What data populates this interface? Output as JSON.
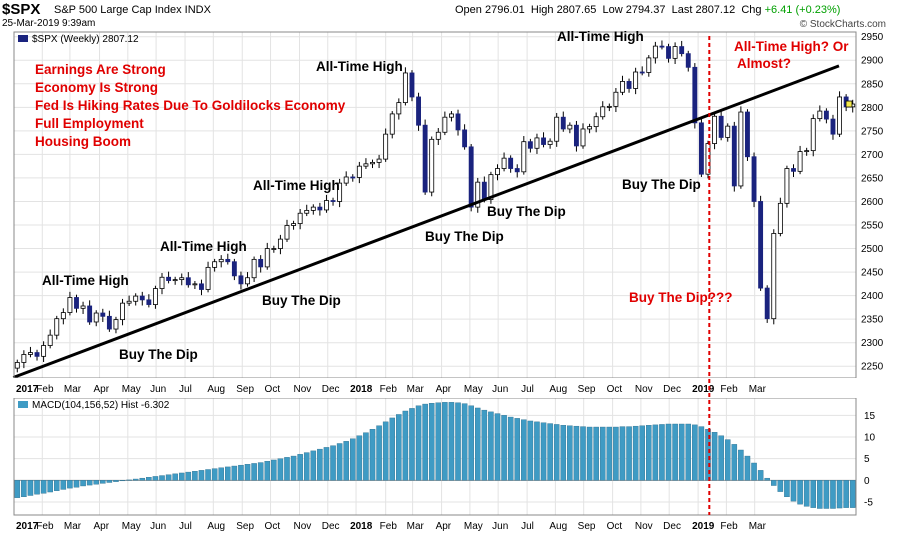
{
  "header": {
    "symbol": "$SPX",
    "description": "S&P 500 Large Cap Index INDX",
    "date": "25-Mar-2019 9:39am",
    "open_label": "Open",
    "open": "2796.01",
    "high_label": "High",
    "high": "2807.65",
    "low_label": "Low",
    "low": "2794.37",
    "last_label": "Last",
    "last": "2807.12",
    "chg_label": "Chg",
    "chg": "+6.41 (+0.23%)",
    "brand": "© StockCharts.com"
  },
  "colors": {
    "up": "#ffffff",
    "down": "#1a237e",
    "macd_bar": "#3f9bc4",
    "annotation_red": "#e00000",
    "trendline": "#000000"
  },
  "annotations": {
    "bullets": [
      "Earnings Are Strong",
      "Economy Is Strong",
      "Fed Is Hiking Rates Due To Goldilocks Economy",
      "Full Employment",
      "Housing Boom"
    ],
    "ath": "All-Time High",
    "btd": "Buy The Dip",
    "ath_q": "All-Time High? Or",
    "almost": "Almost?",
    "btd_q": "Buy The Dip???"
  },
  "chart_data": [
    {
      "type": "candlestick",
      "legend": "$SPX (Weekly) 2807.12",
      "x_tick_labels": [
        "2017",
        "Feb",
        "Mar",
        "Apr",
        "May",
        "Jun",
        "Jul",
        "Aug",
        "Sep",
        "Oct",
        "Nov",
        "Dec",
        "2018",
        "Feb",
        "Mar",
        "Apr",
        "May",
        "Jun",
        "Jul",
        "Aug",
        "Sep",
        "Oct",
        "Nov",
        "Dec",
        "2019",
        "Feb",
        "Mar"
      ],
      "y_tick_labels": [
        "2950",
        "2900",
        "2850",
        "2800",
        "2750",
        "2700",
        "2650",
        "2600",
        "2550",
        "2500",
        "2450",
        "2400",
        "2350",
        "2300",
        "2250"
      ],
      "ylim": [
        2225,
        2960
      ],
      "close": [
        2258,
        2275,
        2279,
        2271,
        2294,
        2316,
        2351,
        2364,
        2396,
        2373,
        2378,
        2344,
        2363,
        2356,
        2329,
        2349,
        2384,
        2388,
        2399,
        2391,
        2381,
        2415,
        2439,
        2432,
        2434,
        2438,
        2423,
        2425,
        2413,
        2460,
        2472,
        2477,
        2472,
        2442,
        2425,
        2438,
        2477,
        2461,
        2500,
        2500,
        2520,
        2549,
        2553,
        2575,
        2581,
        2588,
        2582,
        2602,
        2600,
        2639,
        2652,
        2651,
        2675,
        2680,
        2683,
        2690,
        2743,
        2786,
        2810,
        2873,
        2822,
        2762,
        2620,
        2732,
        2747,
        2779,
        2786,
        2752,
        2716,
        2588,
        2641,
        2604,
        2657,
        2670,
        2692,
        2670,
        2663,
        2727,
        2713,
        2735,
        2721,
        2728,
        2779,
        2754,
        2762,
        2718,
        2754,
        2759,
        2780,
        2801,
        2802,
        2832,
        2855,
        2840,
        2875,
        2874,
        2905,
        2930,
        2929,
        2904,
        2929,
        2914,
        2885,
        2767,
        2658,
        2723,
        2781,
        2736,
        2760,
        2633,
        2790,
        2695,
        2600,
        2416,
        2351,
        2532,
        2596,
        2670,
        2664,
        2706,
        2708,
        2776,
        2792,
        2775,
        2743,
        2822,
        2801,
        2807
      ],
      "macd_ylim": [
        -8,
        19
      ],
      "macd_y_tick_labels": [
        "15",
        "10",
        "5",
        "0",
        "-5"
      ],
      "macd_legend": "MACD(104,156,52) Hist -6.302",
      "macd_values": [
        -4.0,
        -3.8,
        -3.5,
        -3.2,
        -3.0,
        -2.7,
        -2.4,
        -2.1,
        -1.8,
        -1.6,
        -1.3,
        -1.1,
        -0.9,
        -0.7,
        -0.5,
        -0.3,
        -0.1,
        0.1,
        0.3,
        0.5,
        0.7,
        0.9,
        1.1,
        1.3,
        1.5,
        1.7,
        1.9,
        2.1,
        2.3,
        2.5,
        2.7,
        2.9,
        3.1,
        3.3,
        3.5,
        3.7,
        3.9,
        4.1,
        4.4,
        4.7,
        5.0,
        5.3,
        5.6,
        6.0,
        6.4,
        6.8,
        7.2,
        7.6,
        8.0,
        8.5,
        9.0,
        9.6,
        10.3,
        11.0,
        11.8,
        12.6,
        13.5,
        14.4,
        15.2,
        16.0,
        16.6,
        17.2,
        17.6,
        17.8,
        17.9,
        18.0,
        18.0,
        17.9,
        17.7,
        17.2,
        16.7,
        16.2,
        15.8,
        15.4,
        15.0,
        14.6,
        14.3,
        14.0,
        13.7,
        13.5,
        13.3,
        13.1,
        12.9,
        12.7,
        12.6,
        12.5,
        12.4,
        12.3,
        12.3,
        12.3,
        12.3,
        12.3,
        12.4,
        12.4,
        12.5,
        12.6,
        12.7,
        12.8,
        12.9,
        13.0,
        13.0,
        13.0,
        13.0,
        12.8,
        12.4,
        11.8,
        11.1,
        10.3,
        9.4,
        8.3,
        7.0,
        5.6,
        4.0,
        2.3,
        0.5,
        -1.2,
        -2.6,
        -3.8,
        -4.8,
        -5.5,
        -6.0,
        -6.3,
        -6.5,
        -6.5,
        -6.5,
        -6.4,
        -6.3,
        -6.3
      ],
      "trendline": [
        [
          0,
          2226
        ],
        [
          124,
          2888
        ]
      ]
    }
  ]
}
